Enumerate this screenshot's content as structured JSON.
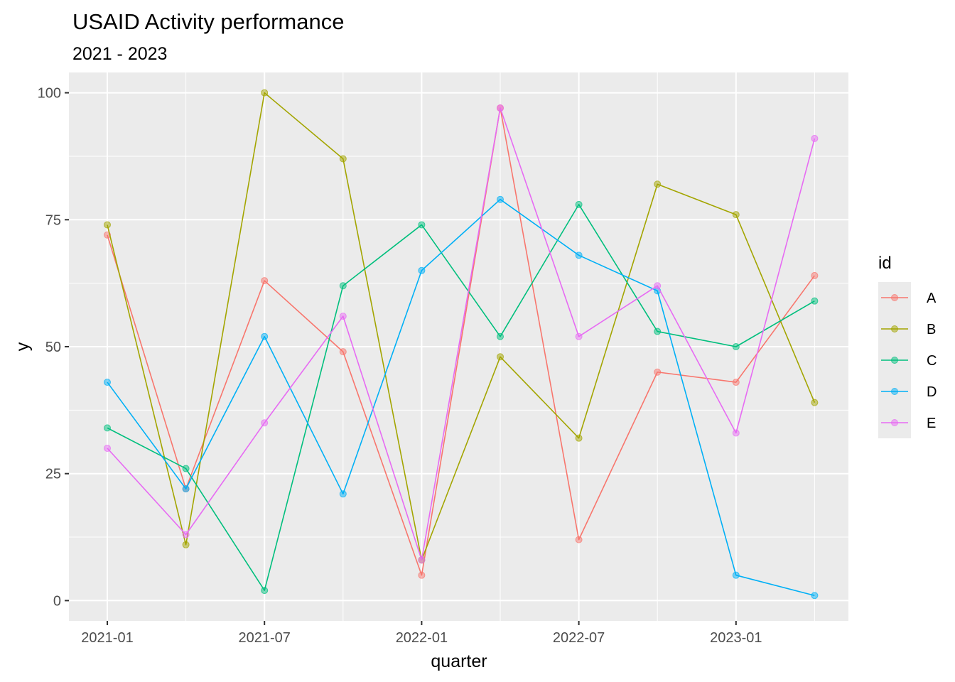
{
  "chart_data": {
    "type": "line",
    "title": "USAID Activity performance",
    "subtitle": "2021 - 2023",
    "xlabel": "quarter",
    "ylabel": "y",
    "x": [
      "2021-01",
      "2021-04",
      "2021-07",
      "2021-10",
      "2022-01",
      "2022-04",
      "2022-07",
      "2022-10",
      "2023-01",
      "2023-04"
    ],
    "x_ticks": [
      "2021-01",
      "2021-07",
      "2022-01",
      "2022-07",
      "2023-01"
    ],
    "y_ticks": [
      0,
      25,
      50,
      75,
      100
    ],
    "ylim": [
      -4,
      104
    ],
    "grid": true,
    "legend_title": "id",
    "legend_position": "right",
    "series": [
      {
        "name": "A",
        "color": "#F8766D",
        "values": [
          72,
          22,
          63,
          49,
          5,
          97,
          12,
          45,
          43,
          64
        ]
      },
      {
        "name": "B",
        "color": "#A3A500",
        "values": [
          74,
          11,
          100,
          87,
          8,
          48,
          32,
          82,
          76,
          39
        ]
      },
      {
        "name": "C",
        "color": "#00BF7D",
        "values": [
          34,
          26,
          2,
          62,
          74,
          52,
          78,
          53,
          50,
          59
        ]
      },
      {
        "name": "D",
        "color": "#00B0F6",
        "values": [
          43,
          22,
          52,
          21,
          65,
          79,
          68,
          61,
          5,
          1
        ]
      },
      {
        "name": "E",
        "color": "#E76BF3",
        "values": [
          30,
          13,
          35,
          56,
          8,
          97,
          52,
          62,
          33,
          91
        ]
      }
    ]
  }
}
